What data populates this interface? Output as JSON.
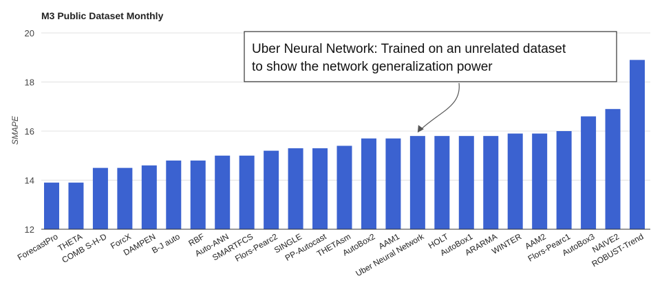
{
  "chart_data": {
    "type": "bar",
    "title": "M3 Public Dataset Monthly",
    "xlabel": "",
    "ylabel": "SMAPE",
    "ylim": [
      12,
      20
    ],
    "yticks": [
      12,
      14,
      16,
      18,
      20
    ],
    "grid": true,
    "bar_color": "#3b62d0",
    "categories": [
      "ForecastPro",
      "THETA",
      "COMB S-H-D",
      "ForcX",
      "DAMPEN",
      "B-J auto",
      "RBF",
      "Auto-ANN",
      "SMARTFCS",
      "Flors-Pearc2",
      "SINGLE",
      "PP-Autocast",
      "THETAsm",
      "AutoBox2",
      "AAM1",
      "Uber Neural Network",
      "HOLT",
      "AutoBox1",
      "ARARMA",
      "WINTER",
      "AAM2",
      "Flors-Pearc1",
      "AutoBox3",
      "NAIVE2",
      "ROBUST-Trend"
    ],
    "values": [
      13.9,
      13.9,
      14.5,
      14.5,
      14.6,
      14.8,
      14.8,
      15.0,
      15.0,
      15.2,
      15.3,
      15.3,
      15.4,
      15.7,
      15.7,
      15.8,
      15.8,
      15.8,
      15.8,
      15.9,
      15.9,
      16.0,
      16.6,
      16.9,
      18.9
    ],
    "annotation": {
      "lines": [
        "Uber Neural Network: Trained on an unrelated dataset",
        "to show the network generalization power"
      ],
      "target": "Uber Neural Network"
    }
  }
}
